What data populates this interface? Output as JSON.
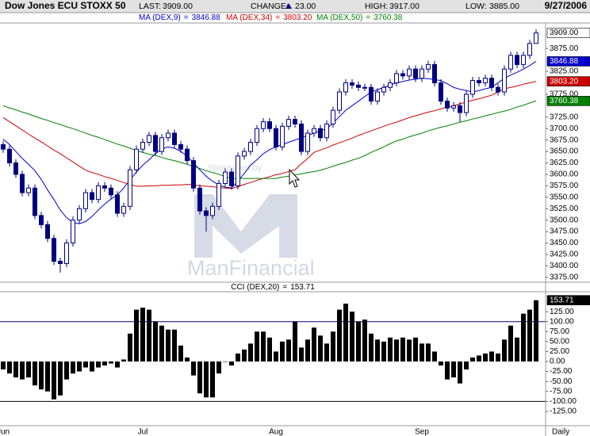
{
  "chart_data": [
    {
      "type": "candlestick",
      "title": "Dow Jones ECU STOXX 50",
      "stats": [
        {
          "label": "LAST:",
          "value": "3909.00"
        },
        {
          "label": "CHANGE:",
          "value": "23.00"
        },
        {
          "label": "HIGH:",
          "value": "3917.00"
        },
        {
          "label": "LOW:",
          "value": "3885.00"
        }
      ],
      "date": "9/27/2006",
      "legend_separator": "=",
      "watermark": {
        "sponsor": "Sponsored by",
        "brand": "ManFinancial"
      },
      "color": "#000080",
      "up_fill": "#ffffff",
      "open": [
        3665,
        3655,
        3625,
        3600,
        3560,
        3570,
        3510,
        3490,
        3460,
        3410,
        3405,
        3450,
        3500,
        3525,
        3560,
        3545,
        3575,
        3570,
        3555,
        3515,
        3530,
        3610,
        3655,
        3670,
        3685,
        3650,
        3680,
        3690,
        3665,
        3655,
        3630,
        3570,
        3520,
        3510,
        3530,
        3580,
        3605,
        3575,
        3640,
        3650,
        3670,
        3700,
        3715,
        3700,
        3660,
        3705,
        3720,
        3710,
        3650,
        3690,
        3700,
        3680,
        3710,
        3740,
        3780,
        3800,
        3795,
        3790,
        3790,
        3760,
        3780,
        3790,
        3800,
        3820,
        3815,
        3830,
        3810,
        3830,
        3840,
        3800,
        3760,
        3745,
        3750,
        3735,
        3775,
        3805,
        3800,
        3810,
        3790,
        3780,
        3830,
        3860,
        3840,
        3860,
        3886
      ],
      "high": [
        3673,
        3663,
        3633,
        3608,
        3578,
        3578,
        3518,
        3498,
        3468,
        3418,
        3458,
        3508,
        3533,
        3568,
        3568,
        3583,
        3583,
        3578,
        3563,
        3538,
        3618,
        3663,
        3678,
        3693,
        3693,
        3688,
        3698,
        3698,
        3673,
        3663,
        3638,
        3578,
        3528,
        3538,
        3588,
        3613,
        3613,
        3648,
        3658,
        3678,
        3708,
        3723,
        3723,
        3708,
        3713,
        3728,
        3728,
        3718,
        3698,
        3708,
        3708,
        3718,
        3748,
        3788,
        3808,
        3808,
        3803,
        3798,
        3798,
        3788,
        3798,
        3808,
        3828,
        3828,
        3838,
        3838,
        3838,
        3848,
        3848,
        3808,
        3768,
        3758,
        3758,
        3783,
        3813,
        3813,
        3818,
        3818,
        3798,
        3838,
        3868,
        3868,
        3868,
        3894,
        3917
      ],
      "low": [
        3647,
        3617,
        3592,
        3552,
        3552,
        3502,
        3482,
        3452,
        3402,
        3385,
        3397,
        3442,
        3492,
        3517,
        3537,
        3537,
        3562,
        3547,
        3507,
        3507,
        3522,
        3602,
        3647,
        3662,
        3642,
        3642,
        3672,
        3657,
        3647,
        3622,
        3562,
        3512,
        3475,
        3502,
        3522,
        3572,
        3567,
        3567,
        3632,
        3642,
        3662,
        3692,
        3692,
        3652,
        3652,
        3697,
        3702,
        3642,
        3642,
        3682,
        3672,
        3672,
        3702,
        3732,
        3772,
        3787,
        3782,
        3782,
        3752,
        3752,
        3772,
        3782,
        3792,
        3807,
        3807,
        3802,
        3802,
        3822,
        3792,
        3752,
        3737,
        3737,
        3715,
        3727,
        3767,
        3792,
        3792,
        3782,
        3772,
        3772,
        3822,
        3832,
        3832,
        3852,
        3885
      ],
      "close": [
        3655,
        3625,
        3600,
        3560,
        3570,
        3510,
        3490,
        3460,
        3410,
        3405,
        3450,
        3500,
        3525,
        3560,
        3545,
        3575,
        3570,
        3555,
        3515,
        3530,
        3610,
        3655,
        3670,
        3685,
        3650,
        3680,
        3690,
        3665,
        3655,
        3630,
        3570,
        3520,
        3510,
        3530,
        3580,
        3605,
        3575,
        3640,
        3650,
        3670,
        3700,
        3715,
        3700,
        3660,
        3705,
        3720,
        3710,
        3650,
        3690,
        3700,
        3680,
        3710,
        3740,
        3780,
        3800,
        3795,
        3790,
        3790,
        3760,
        3780,
        3790,
        3800,
        3820,
        3815,
        3830,
        3810,
        3830,
        3840,
        3800,
        3760,
        3745,
        3750,
        3735,
        3775,
        3805,
        3800,
        3810,
        3790,
        3780,
        3830,
        3860,
        3840,
        3860,
        3886,
        3909
      ],
      "last_value_label": "3909.00",
      "series": [
        {
          "name": "MA (DEX,9)",
          "color": "#0000cc",
          "last_value_label": "3846.88",
          "values": [
            3677,
            3665,
            3650,
            3635,
            3622,
            3608,
            3589,
            3566,
            3545,
            3522,
            3505,
            3495,
            3492,
            3497,
            3508,
            3522,
            3535,
            3546,
            3555,
            3570,
            3588,
            3605,
            3620,
            3632,
            3645,
            3655,
            3660,
            3657,
            3650,
            3640,
            3625,
            3610,
            3596,
            3585,
            3577,
            3572,
            3570,
            3585,
            3602,
            3620,
            3632,
            3645,
            3654,
            3660,
            3665,
            3670,
            3675,
            3680,
            3685,
            3690,
            3695,
            3700,
            3712,
            3726,
            3740,
            3750,
            3760,
            3770,
            3780,
            3785,
            3790,
            3795,
            3800,
            3803,
            3806,
            3808,
            3810,
            3809,
            3807,
            3805,
            3798,
            3790,
            3786,
            3783,
            3780,
            3783,
            3787,
            3790,
            3800,
            3810,
            3817,
            3823,
            3830,
            3838,
            3846.88
          ]
        },
        {
          "name": "MA (DEX,34)",
          "color": "#cc0000",
          "last_value_label": "3803.20",
          "values": [
            3724,
            3715,
            3706,
            3697,
            3688,
            3679,
            3671,
            3662,
            3653,
            3645,
            3636,
            3627,
            3618,
            3609,
            3604,
            3600,
            3595,
            3591,
            3587,
            3582,
            3578,
            3574,
            3574,
            3575,
            3575,
            3576,
            3576,
            3577,
            3577,
            3578,
            3577,
            3575,
            3574,
            3573,
            3571,
            3570,
            3569,
            3573,
            3578,
            3582,
            3587,
            3591,
            3595,
            3599,
            3602,
            3606,
            3610,
            3623,
            3635,
            3648,
            3653,
            3658,
            3664,
            3669,
            3674,
            3679,
            3685,
            3690,
            3695,
            3700,
            3705,
            3710,
            3714,
            3719,
            3724,
            3728,
            3732,
            3736,
            3739,
            3743,
            3747,
            3750,
            3754,
            3758,
            3762,
            3765,
            3769,
            3773,
            3780,
            3787,
            3790,
            3793,
            3797,
            3800,
            3803.2
          ]
        },
        {
          "name": "MA (DEX,50)",
          "color": "#008000",
          "last_value_label": "3760.38",
          "values": [
            3750,
            3745,
            3741,
            3736,
            3732,
            3727,
            3722,
            3718,
            3713,
            3709,
            3704,
            3700,
            3695,
            3690,
            3685,
            3681,
            3676,
            3671,
            3666,
            3662,
            3657,
            3652,
            3648,
            3644,
            3641,
            3637,
            3633,
            3630,
            3626,
            3622,
            3617,
            3613,
            3608,
            3604,
            3600,
            3595,
            3591,
            3591,
            3591,
            3591,
            3591,
            3591,
            3591,
            3591,
            3594,
            3596,
            3599,
            3601,
            3604,
            3606,
            3609,
            3613,
            3618,
            3622,
            3626,
            3631,
            3635,
            3641,
            3648,
            3654,
            3660,
            3667,
            3673,
            3677,
            3682,
            3686,
            3690,
            3695,
            3699,
            3703,
            3706,
            3710,
            3714,
            3717,
            3721,
            3724,
            3728,
            3731,
            3735,
            3738,
            3742,
            3747,
            3751,
            3756,
            3760.38
          ]
        }
      ],
      "ylim": [
        3366,
        3929
      ],
      "yticks": [
        {
          "value": 3875,
          "label": "3875.00"
        },
        {
          "value": 3825,
          "label": "3825.00"
        },
        {
          "value": 3775,
          "label": "3775.00"
        },
        {
          "value": 3725,
          "label": "3725.00"
        },
        {
          "value": 3700,
          "label": "3700.00"
        },
        {
          "value": 3675,
          "label": "3675.00"
        },
        {
          "value": 3650,
          "label": "3650.00"
        },
        {
          "value": 3625,
          "label": "3625.00"
        },
        {
          "value": 3600,
          "label": "3600.00"
        },
        {
          "value": 3575,
          "label": "3575.00"
        },
        {
          "value": 3550,
          "label": "3550.00"
        },
        {
          "value": 3525,
          "label": "3525.00"
        },
        {
          "value": 3500,
          "label": "3500.00"
        },
        {
          "value": 3475,
          "label": "3475.00"
        },
        {
          "value": 3450,
          "label": "3450.00"
        },
        {
          "value": 3425,
          "label": "3425.00"
        },
        {
          "value": 3400,
          "label": "3400.00"
        },
        {
          "value": 3375,
          "label": "3375.00"
        }
      ]
    },
    {
      "type": "bar",
      "title": "CCI (DEX,20)",
      "legend_separator": "=",
      "color": "#000000",
      "categories": [
        "Jun",
        null,
        null,
        null,
        null,
        null,
        null,
        null,
        null,
        null,
        null,
        null,
        null,
        null,
        null,
        null,
        null,
        null,
        null,
        null,
        null,
        null,
        "Jul",
        null,
        null,
        null,
        null,
        null,
        null,
        null,
        null,
        null,
        null,
        null,
        null,
        null,
        null,
        null,
        null,
        null,
        null,
        null,
        null,
        "Aug",
        null,
        null,
        null,
        null,
        null,
        null,
        null,
        null,
        null,
        null,
        null,
        null,
        null,
        null,
        null,
        null,
        null,
        null,
        null,
        null,
        null,
        null,
        "Sep",
        null,
        null,
        null,
        null,
        null,
        null,
        null,
        null,
        null,
        null,
        null,
        null,
        null,
        null,
        null,
        null,
        null,
        null
      ],
      "values": [
        -20,
        -30,
        -40,
        -45,
        -40,
        -60,
        -70,
        -75,
        -95,
        -85,
        -45,
        -30,
        -25,
        -15,
        -25,
        -15,
        -10,
        -5,
        -15,
        5,
        70,
        130,
        135,
        130,
        100,
        90,
        80,
        80,
        40,
        10,
        -35,
        -80,
        -90,
        -90,
        -30,
        0,
        -10,
        20,
        30,
        45,
        75,
        75,
        60,
        25,
        50,
        55,
        100,
        35,
        55,
        85,
        65,
        45,
        75,
        130,
        145,
        125,
        100,
        105,
        70,
        55,
        50,
        60,
        55,
        60,
        55,
        60,
        45,
        45,
        25,
        -10,
        -45,
        -40,
        -55,
        -20,
        10,
        15,
        20,
        25,
        20,
        55,
        90,
        60,
        120,
        130,
        153.71
      ],
      "x_label": "Daily",
      "reference_lines": [
        {
          "value": 100,
          "color": "#000080"
        },
        {
          "value": -100,
          "color": "#000000"
        }
      ],
      "ylim": [
        -161,
        175
      ],
      "yticks": [
        {
          "value": 125,
          "label": "125.00"
        },
        {
          "value": 100,
          "label": "100.00"
        },
        {
          "value": 75,
          "label": "75.00"
        },
        {
          "value": 50,
          "label": "50.00"
        },
        {
          "value": 25,
          "label": "25.00"
        },
        {
          "value": 0,
          "label": "0.00"
        },
        {
          "value": -25,
          "label": "-25.00"
        },
        {
          "value": -50,
          "label": "-50.00"
        },
        {
          "value": -75,
          "label": "-75.00"
        },
        {
          "value": -100,
          "label": "-100.00"
        },
        {
          "value": -125,
          "label": "-125.00"
        }
      ]
    }
  ]
}
